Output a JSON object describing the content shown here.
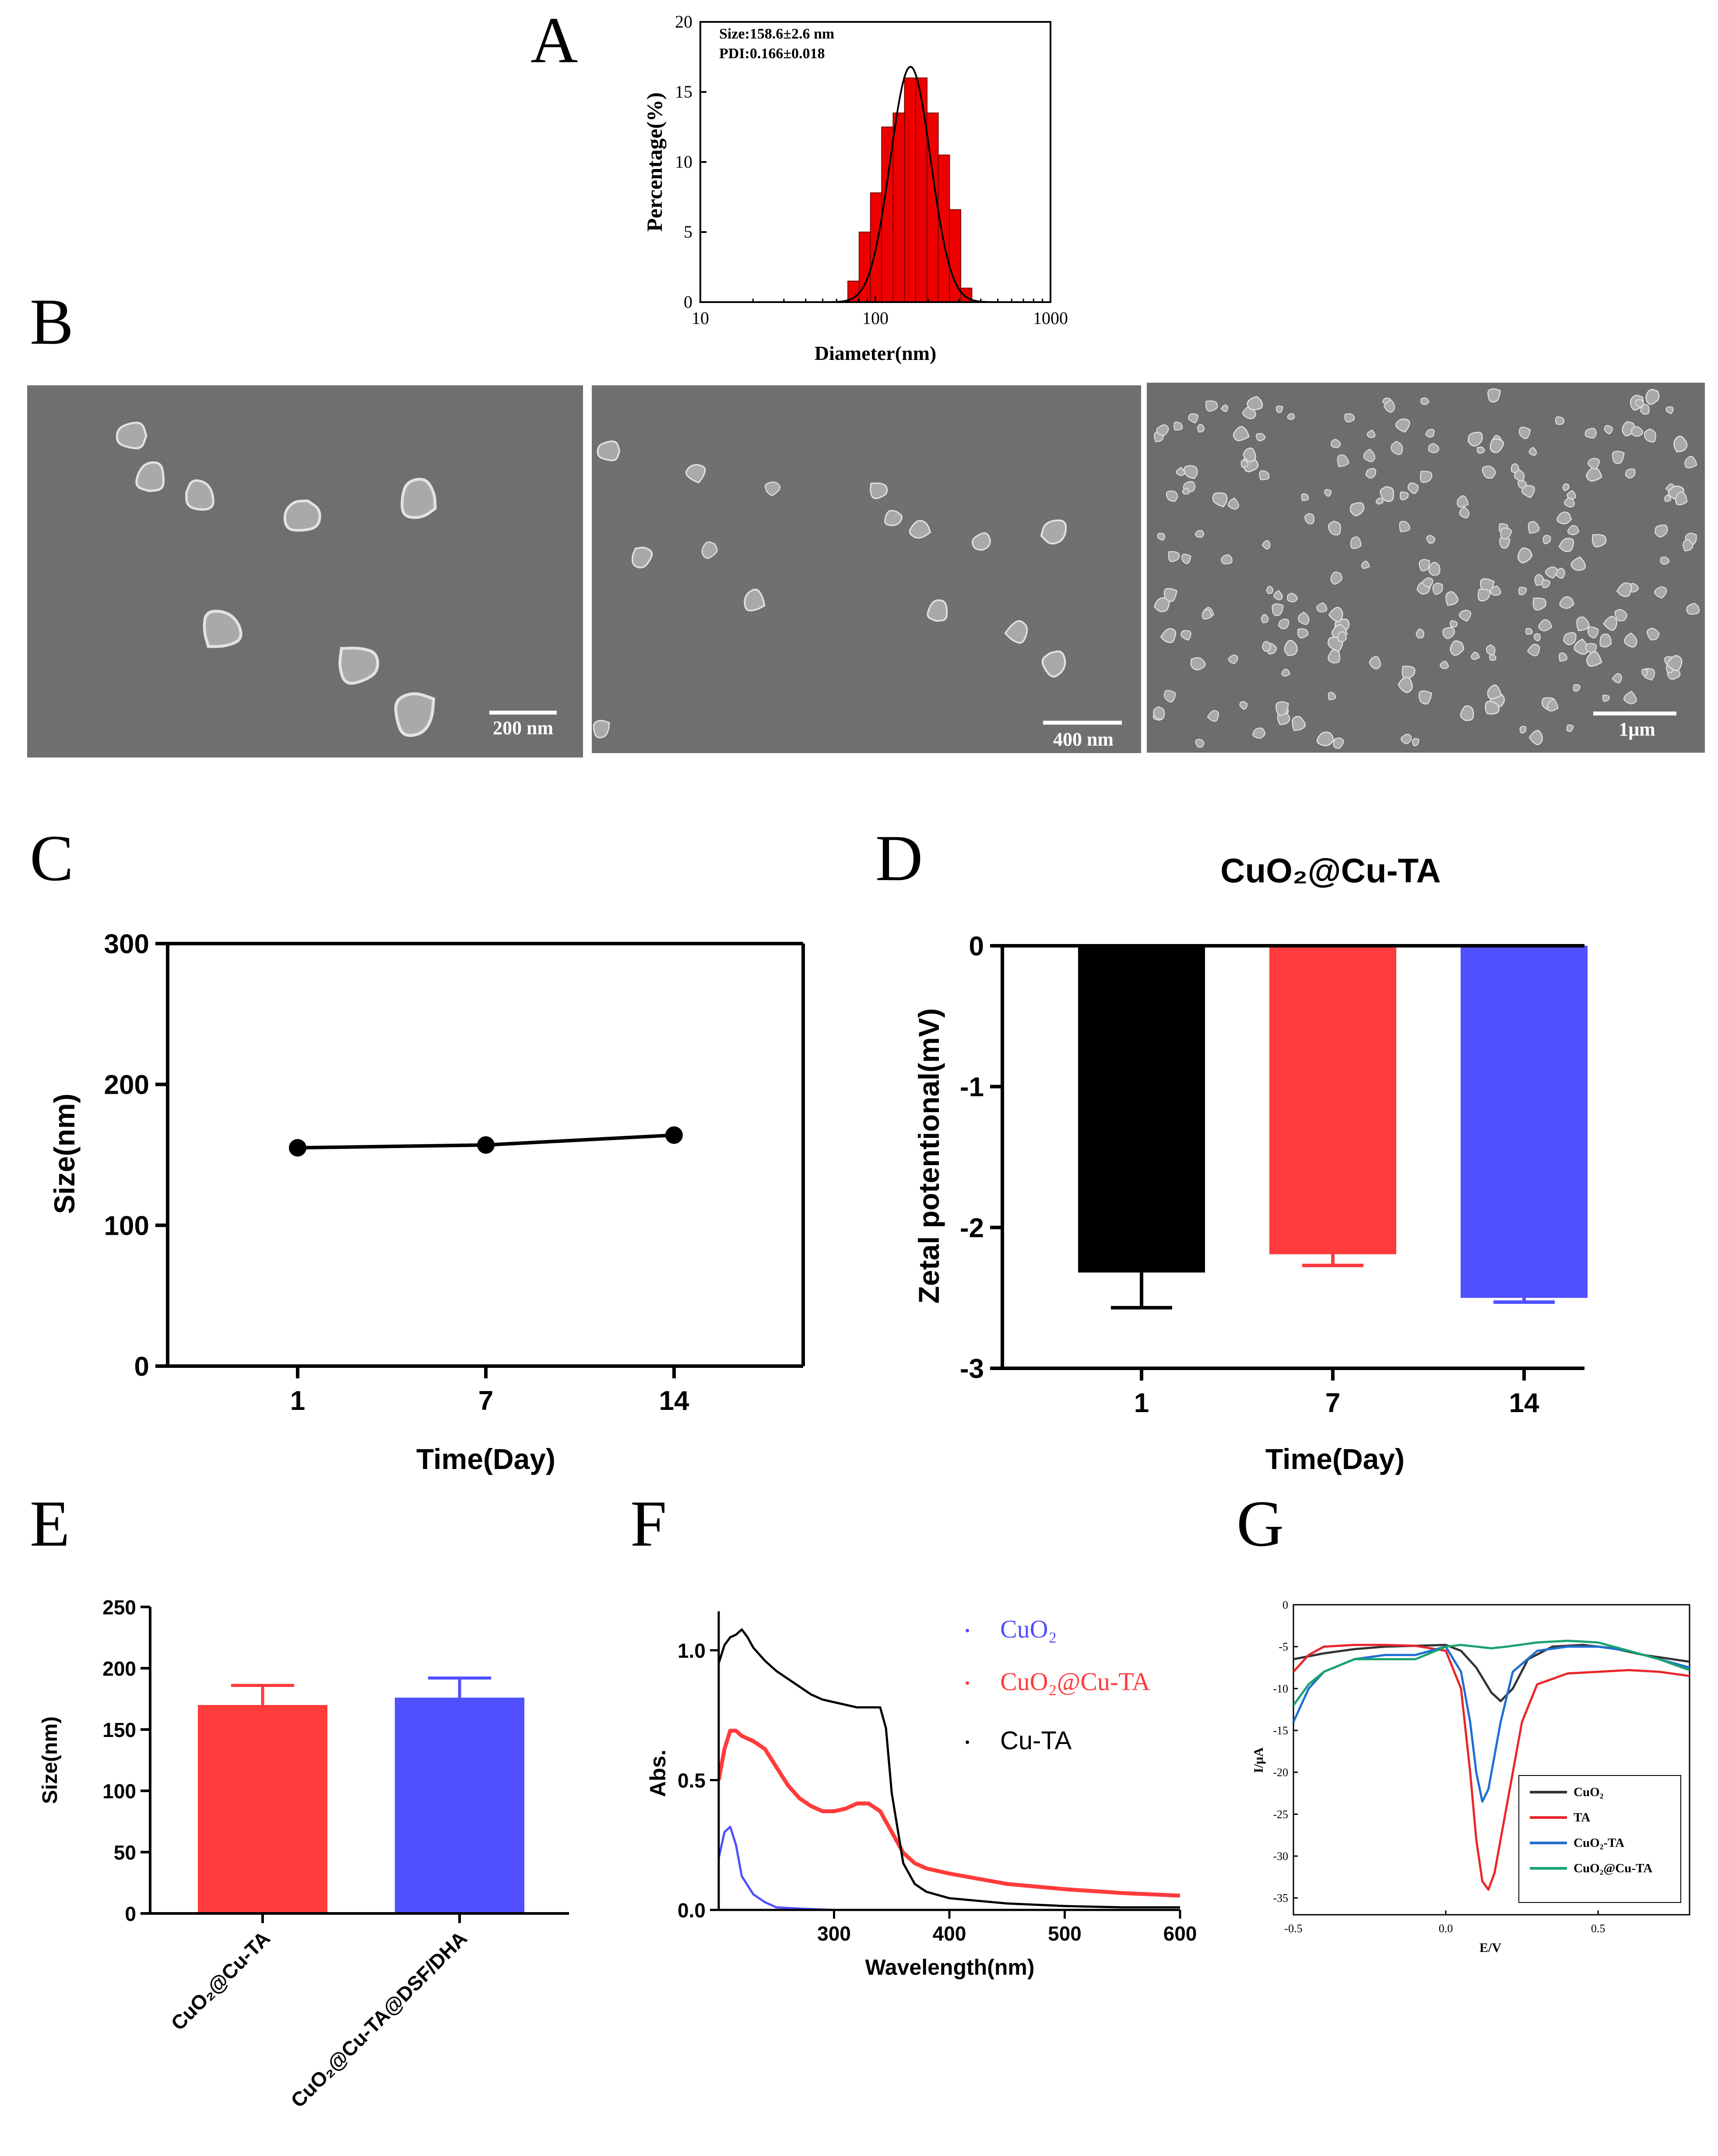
{
  "panel_letters": {
    "a": "A",
    "b": "B",
    "c": "C",
    "d": "D",
    "e": "E",
    "f": "F",
    "g": "G"
  },
  "colors": {
    "red": "#ff3b3b",
    "blue": "#5050ff",
    "black": "#000000",
    "green": "#1aa36f",
    "sem_bg": "#6f6f6f"
  },
  "sem_images": [
    {
      "scale_bar": "200 nm"
    },
    {
      "scale_bar": "400 nm"
    },
    {
      "scale_bar": "1μm"
    }
  ],
  "chart_data": [
    {
      "id": "A",
      "type": "bar",
      "xlabel": "Diameter(nm)",
      "ylabel": "Percentage(%)",
      "x_scale": "log",
      "xlim": [
        10,
        1000
      ],
      "ylim": [
        0,
        20
      ],
      "x_ticks": [
        "10",
        "100",
        "1000"
      ],
      "y_ticks": [
        "0",
        "5",
        "10",
        "15",
        "20"
      ],
      "annotation": [
        "Size:158.6±2.6 nm",
        "PDI:0.166±0.018"
      ],
      "bin_centers": [
        75,
        87,
        101,
        117,
        136,
        158,
        183,
        212,
        246,
        285,
        330
      ],
      "values": [
        1.5,
        5,
        7.8,
        12.5,
        13.5,
        16,
        16,
        13.5,
        10.5,
        6.6,
        1
      ],
      "fit": {
        "type": "lognormal",
        "peak_x": 158.6,
        "peak_y": 16.8
      }
    },
    {
      "id": "C",
      "type": "line",
      "xlabel": "Time(Day)",
      "ylabel": "Size(nm)",
      "categories": [
        "1",
        "7",
        "14"
      ],
      "values": [
        155,
        157,
        164
      ],
      "ylim": [
        0,
        300
      ],
      "y_ticks": [
        "0",
        "100",
        "200",
        "300"
      ]
    },
    {
      "id": "D",
      "type": "bar",
      "title": "CuO₂@Cu-TA",
      "xlabel": "Time(Day)",
      "ylabel": "Zetal potentional(mV)",
      "categories": [
        "1",
        "7",
        "14"
      ],
      "values": [
        -2.32,
        -2.19,
        -2.5
      ],
      "errors": [
        0.25,
        0.08,
        0.03
      ],
      "ylim": [
        -3,
        0
      ],
      "y_ticks": [
        "0",
        "-1",
        "-2",
        "-3"
      ]
    },
    {
      "id": "E",
      "type": "bar",
      "ylabel": "Size(nm)",
      "categories": [
        "CuO₂@Cu-TA",
        "CuO₂@Cu-TA@DSF/DHA"
      ],
      "values": [
        170,
        176
      ],
      "errors": [
        16,
        16
      ],
      "ylim": [
        0,
        250
      ],
      "y_ticks": [
        "0",
        "50",
        "100",
        "150",
        "200",
        "250"
      ]
    },
    {
      "id": "F",
      "type": "line",
      "xlabel": "Wavelength(nm)",
      "ylabel": "Abs.",
      "xlim": [
        200,
        600
      ],
      "ylim": [
        0,
        1.15
      ],
      "x_ticks": [
        "300",
        "400",
        "500",
        "600"
      ],
      "y_ticks": [
        "0.0",
        "0.5",
        "1.0"
      ],
      "series": [
        {
          "name": "CuO₂",
          "x": [
            200,
            205,
            210,
            215,
            220,
            230,
            240,
            250,
            270,
            300
          ],
          "y": [
            0.2,
            0.3,
            0.32,
            0.25,
            0.13,
            0.06,
            0.03,
            0.01,
            0.005,
            0
          ]
        },
        {
          "name": "CuO₂@Cu-TA",
          "x": [
            200,
            205,
            210,
            215,
            220,
            230,
            240,
            250,
            260,
            270,
            280,
            290,
            300,
            310,
            320,
            330,
            340,
            350,
            360,
            370,
            380,
            400,
            450,
            500,
            550,
            600
          ],
          "y": [
            0.5,
            0.62,
            0.69,
            0.69,
            0.67,
            0.65,
            0.62,
            0.55,
            0.48,
            0.43,
            0.4,
            0.38,
            0.38,
            0.39,
            0.41,
            0.41,
            0.38,
            0.3,
            0.22,
            0.18,
            0.16,
            0.14,
            0.1,
            0.08,
            0.065,
            0.055
          ]
        },
        {
          "name": "Cu-TA",
          "x": [
            200,
            205,
            210,
            215,
            220,
            225,
            230,
            240,
            250,
            260,
            270,
            280,
            290,
            300,
            310,
            320,
            330,
            340,
            345,
            350,
            360,
            370,
            380,
            400,
            450,
            500,
            550,
            600
          ],
          "y": [
            0.95,
            1.02,
            1.05,
            1.06,
            1.08,
            1.05,
            1.01,
            0.96,
            0.92,
            0.89,
            0.86,
            0.83,
            0.81,
            0.8,
            0.79,
            0.78,
            0.78,
            0.78,
            0.7,
            0.45,
            0.18,
            0.1,
            0.07,
            0.045,
            0.025,
            0.015,
            0.01,
            0.01
          ]
        }
      ]
    },
    {
      "id": "G",
      "type": "line",
      "xlabel": "E/V",
      "ylabel": "I/μA",
      "xlim": [
        -0.5,
        0.8
      ],
      "ylim": [
        -37,
        0
      ],
      "x_ticks": [
        "-0.5",
        "0.0",
        "0.5"
      ],
      "y_ticks": [
        "0",
        "-5",
        "-10",
        "-15",
        "-20",
        "-25",
        "-30",
        "-35"
      ],
      "series": [
        {
          "name": "CuO₂",
          "x": [
            -0.5,
            -0.4,
            -0.3,
            -0.2,
            -0.1,
            0,
            0.05,
            0.1,
            0.15,
            0.18,
            0.22,
            0.27,
            0.35,
            0.45,
            0.55,
            0.65,
            0.8
          ],
          "y": [
            -6.5,
            -5.8,
            -5.3,
            -5.0,
            -4.9,
            -4.8,
            -5.5,
            -7.5,
            -10.5,
            -11.5,
            -10,
            -6.5,
            -5,
            -4.8,
            -5.2,
            -6,
            -6.8
          ]
        },
        {
          "name": "TA",
          "x": [
            -0.5,
            -0.45,
            -0.4,
            -0.3,
            -0.2,
            -0.1,
            0,
            0.05,
            0.08,
            0.1,
            0.12,
            0.14,
            0.16,
            0.2,
            0.25,
            0.3,
            0.4,
            0.5,
            0.6,
            0.7,
            0.8
          ],
          "y": [
            -8,
            -6,
            -5,
            -4.8,
            -4.8,
            -4.9,
            -5.5,
            -10,
            -20,
            -28,
            -33,
            -34,
            -32,
            -24,
            -14,
            -9.5,
            -8.2,
            -8,
            -7.8,
            -8,
            -8.5
          ]
        },
        {
          "name": "CuO₂-TA",
          "x": [
            -0.5,
            -0.45,
            -0.4,
            -0.3,
            -0.2,
            -0.1,
            0,
            0.05,
            0.08,
            0.1,
            0.12,
            0.14,
            0.18,
            0.22,
            0.3,
            0.4,
            0.5,
            0.6,
            0.7,
            0.8
          ],
          "y": [
            -14,
            -10,
            -8,
            -6.5,
            -6,
            -6,
            -5,
            -8,
            -14,
            -20,
            -23.5,
            -22,
            -14,
            -8,
            -5.5,
            -5,
            -5,
            -5.5,
            -6.5,
            -7.5
          ]
        },
        {
          "name": "CuO₂@Cu-TA",
          "x": [
            -0.5,
            -0.45,
            -0.4,
            -0.3,
            -0.2,
            -0.1,
            0,
            0.05,
            0.1,
            0.15,
            0.2,
            0.3,
            0.4,
            0.5,
            0.6,
            0.7,
            0.8
          ],
          "y": [
            -12,
            -9.5,
            -8,
            -6.5,
            -6.5,
            -6.5,
            -5,
            -4.8,
            -5,
            -5.2,
            -5,
            -4.5,
            -4.3,
            -4.5,
            -5.5,
            -6.5,
            -7.8
          ]
        }
      ]
    }
  ]
}
